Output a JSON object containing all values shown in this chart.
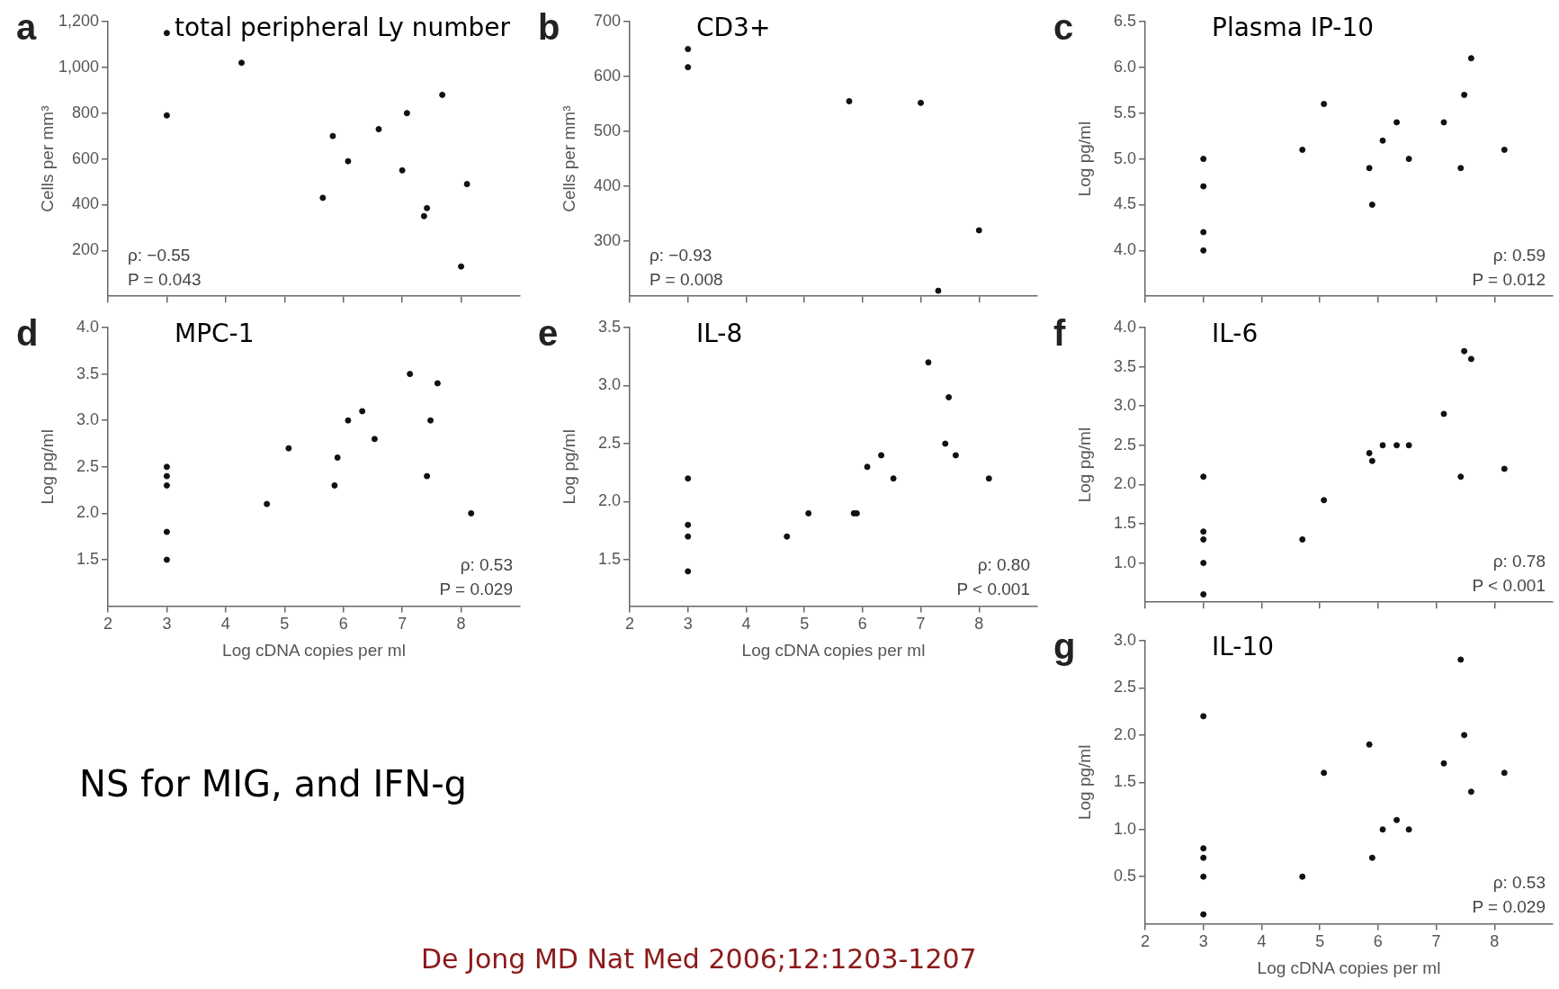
{
  "chart_data": [
    {
      "type": "scatter",
      "subtitle": "a",
      "title": "total peripheral Ly number",
      "ylabel": "Cells per mm³",
      "color": "#111111",
      "marker": "circle",
      "tick_labels": "y",
      "xlim": [
        2,
        9
      ],
      "xticks": [
        2,
        3,
        4,
        5,
        6,
        7,
        8
      ],
      "ylim": [
        0,
        1200
      ],
      "yticks": [
        200,
        400,
        600,
        800,
        {
          "value": 1000,
          "label": "1,000"
        },
        {
          "value": 1200,
          "label": "1,200"
        }
      ],
      "x": [
        3,
        3,
        4.27,
        5.65,
        5.82,
        6.08,
        6.6,
        7.0,
        7.08,
        7.37,
        7.42,
        7.68,
        8.0,
        8.1
      ],
      "values": [
        1150,
        790,
        1020,
        430,
        700,
        590,
        730,
        550,
        800,
        350,
        385,
        880,
        130,
        490
      ],
      "annotations": [
        "ρ: −0.55",
        "P = 0.043"
      ]
    },
    {
      "type": "scatter",
      "subtitle": "b",
      "title": "CD3+",
      "ylabel": "Cells per mm³",
      "color": "#111111",
      "marker": "circle",
      "tick_labels": "y",
      "xlim": [
        2,
        9
      ],
      "xticks": [
        2,
        3,
        4,
        5,
        6,
        7,
        8
      ],
      "ylim": [
        200,
        700
      ],
      "yticks": [
        300,
        400,
        500,
        600,
        700
      ],
      "x": [
        3,
        3,
        5.77,
        7.0,
        7.3,
        8.0
      ],
      "values": [
        650,
        617,
        555,
        552,
        210,
        320
      ],
      "annotations": [
        "ρ: −0.93",
        "P = 0.008"
      ]
    },
    {
      "type": "scatter",
      "subtitle": "c",
      "title": "Plasma IP-10",
      "ylabel": "Log pg/ml",
      "color": "#111111",
      "marker": "circle",
      "tick_labels": "y",
      "xlim": [
        2,
        9
      ],
      "xticks": [
        2,
        3,
        4,
        5,
        6,
        7,
        8
      ],
      "ylim": [
        3.5,
        6.5
      ],
      "yticks": [
        {
          "value": 4,
          "label": "4.0"
        },
        4.5,
        {
          "value": 5,
          "label": "5.0"
        },
        5.5,
        {
          "value": 6,
          "label": "6.0"
        },
        6.5
      ],
      "x": [
        3,
        3,
        3,
        3,
        4.7,
        5.07,
        5.85,
        5.9,
        6.08,
        6.32,
        6.53,
        7.13,
        7.42,
        7.48,
        7.6,
        8.17
      ],
      "values": [
        5.0,
        4.7,
        4.2,
        4.0,
        5.1,
        5.6,
        4.9,
        4.5,
        5.2,
        5.4,
        5.0,
        5.4,
        4.9,
        5.7,
        6.1,
        5.1
      ],
      "annotations": [
        "ρ: 0.59",
        "P = 0.012"
      ]
    },
    {
      "type": "scatter",
      "subtitle": "d",
      "title": "MPC-1",
      "xlabel": "Log cDNA copies per ml",
      "ylabel": "Log pg/ml",
      "color": "#111111",
      "marker": "circle",
      "xlim": [
        2,
        9
      ],
      "xticks": [
        2,
        3,
        4,
        5,
        6,
        7,
        8
      ],
      "ylim": [
        1,
        4
      ],
      "yticks": [
        1.5,
        {
          "value": 2,
          "label": "2.0"
        },
        2.5,
        {
          "value": 3,
          "label": "3.0"
        },
        3.5,
        {
          "value": 4,
          "label": "4.0"
        }
      ],
      "x": [
        3,
        3,
        3,
        3,
        3,
        4.7,
        5.07,
        5.85,
        5.9,
        6.08,
        6.32,
        6.53,
        7.13,
        7.42,
        7.48,
        7.6,
        8.17
      ],
      "values": [
        2.5,
        2.4,
        2.3,
        1.8,
        1.5,
        2.1,
        2.7,
        2.3,
        2.6,
        3.0,
        3.1,
        2.8,
        3.5,
        2.4,
        3.0,
        3.4,
        2.0
      ],
      "annotations": [
        "ρ: 0.53",
        "P = 0.029"
      ]
    },
    {
      "type": "scatter",
      "subtitle": "e",
      "title": "IL-8",
      "xlabel": "Log cDNA copies per ml",
      "ylabel": "Log pg/ml",
      "color": "#111111",
      "marker": "circle",
      "xlim": [
        2,
        9
      ],
      "xticks": [
        2,
        3,
        4,
        5,
        6,
        7,
        8
      ],
      "ylim": [
        1.1,
        3.5
      ],
      "yticks": [
        1.5,
        {
          "value": 2,
          "label": "2.0"
        },
        2.5,
        {
          "value": 3,
          "label": "3.0"
        },
        3.5
      ],
      "x": [
        3,
        3,
        3,
        3,
        4.7,
        5.07,
        5.85,
        5.9,
        6.08,
        6.32,
        6.53,
        7.13,
        7.42,
        7.48,
        7.6,
        8.17
      ],
      "values": [
        2.2,
        1.8,
        1.7,
        1.4,
        1.7,
        1.9,
        1.9,
        1.9,
        2.3,
        2.4,
        2.2,
        3.2,
        2.5,
        2.9,
        2.4,
        2.2
      ],
      "annotations": [
        "ρ: 0.80",
        "P < 0.001"
      ]
    },
    {
      "type": "scatter",
      "subtitle": "f",
      "title": "IL-6",
      "ylabel": "Log pg/ml",
      "color": "#111111",
      "marker": "circle",
      "tick_labels": "y",
      "xlim": [
        2,
        9
      ],
      "xticks": [
        2,
        3,
        4,
        5,
        6,
        7,
        8
      ],
      "ylim": [
        0.5,
        4
      ],
      "yticks": [
        {
          "value": 1,
          "label": "1.0"
        },
        1.5,
        {
          "value": 2,
          "label": "2.0"
        },
        2.5,
        {
          "value": 3,
          "label": "3.0"
        },
        3.5,
        {
          "value": 4,
          "label": "4.0"
        }
      ],
      "x": [
        3,
        3,
        3,
        3,
        3,
        4.7,
        5.07,
        5.85,
        5.9,
        6.08,
        6.32,
        6.53,
        7.13,
        7.42,
        7.48,
        7.6,
        8.17
      ],
      "values": [
        2.1,
        1.4,
        1.3,
        1.0,
        0.6,
        1.3,
        1.8,
        2.4,
        2.3,
        2.5,
        2.5,
        2.5,
        2.9,
        2.1,
        3.7,
        3.6,
        2.2
      ],
      "annotations": [
        "ρ: 0.78",
        "P < 0.001"
      ]
    },
    {
      "type": "scatter",
      "subtitle": "g",
      "title": "IL-10",
      "xlabel": "Log cDNA copies per ml",
      "ylabel": "Log pg/ml",
      "color": "#111111",
      "marker": "circle",
      "xlim": [
        2,
        9
      ],
      "xticks": [
        2,
        3,
        4,
        5,
        6,
        7,
        8
      ],
      "ylim": [
        0,
        3
      ],
      "yticks": [
        0.5,
        {
          "value": 1,
          "label": "1.0"
        },
        1.5,
        {
          "value": 2,
          "label": "2.0"
        },
        2.5,
        {
          "value": 3,
          "label": "3.0"
        }
      ],
      "x": [
        3,
        3,
        3,
        3,
        3,
        4.7,
        5.07,
        5.85,
        5.9,
        6.08,
        6.32,
        6.53,
        7.13,
        7.42,
        7.48,
        7.6,
        8.17
      ],
      "values": [
        2.2,
        0.8,
        0.7,
        0.5,
        0.1,
        0.5,
        1.6,
        1.9,
        0.7,
        1.0,
        1.1,
        1.0,
        1.7,
        2.8,
        2.0,
        1.4,
        1.6
      ],
      "annotations": [
        "ρ: 0.53",
        "P = 0.029"
      ]
    },
    {
      "type": "other",
      "annotations": [
        "NS for MIG, and IFN-g",
        "De Jong MD Nat Med 2006;12:1203-1207"
      ]
    }
  ]
}
